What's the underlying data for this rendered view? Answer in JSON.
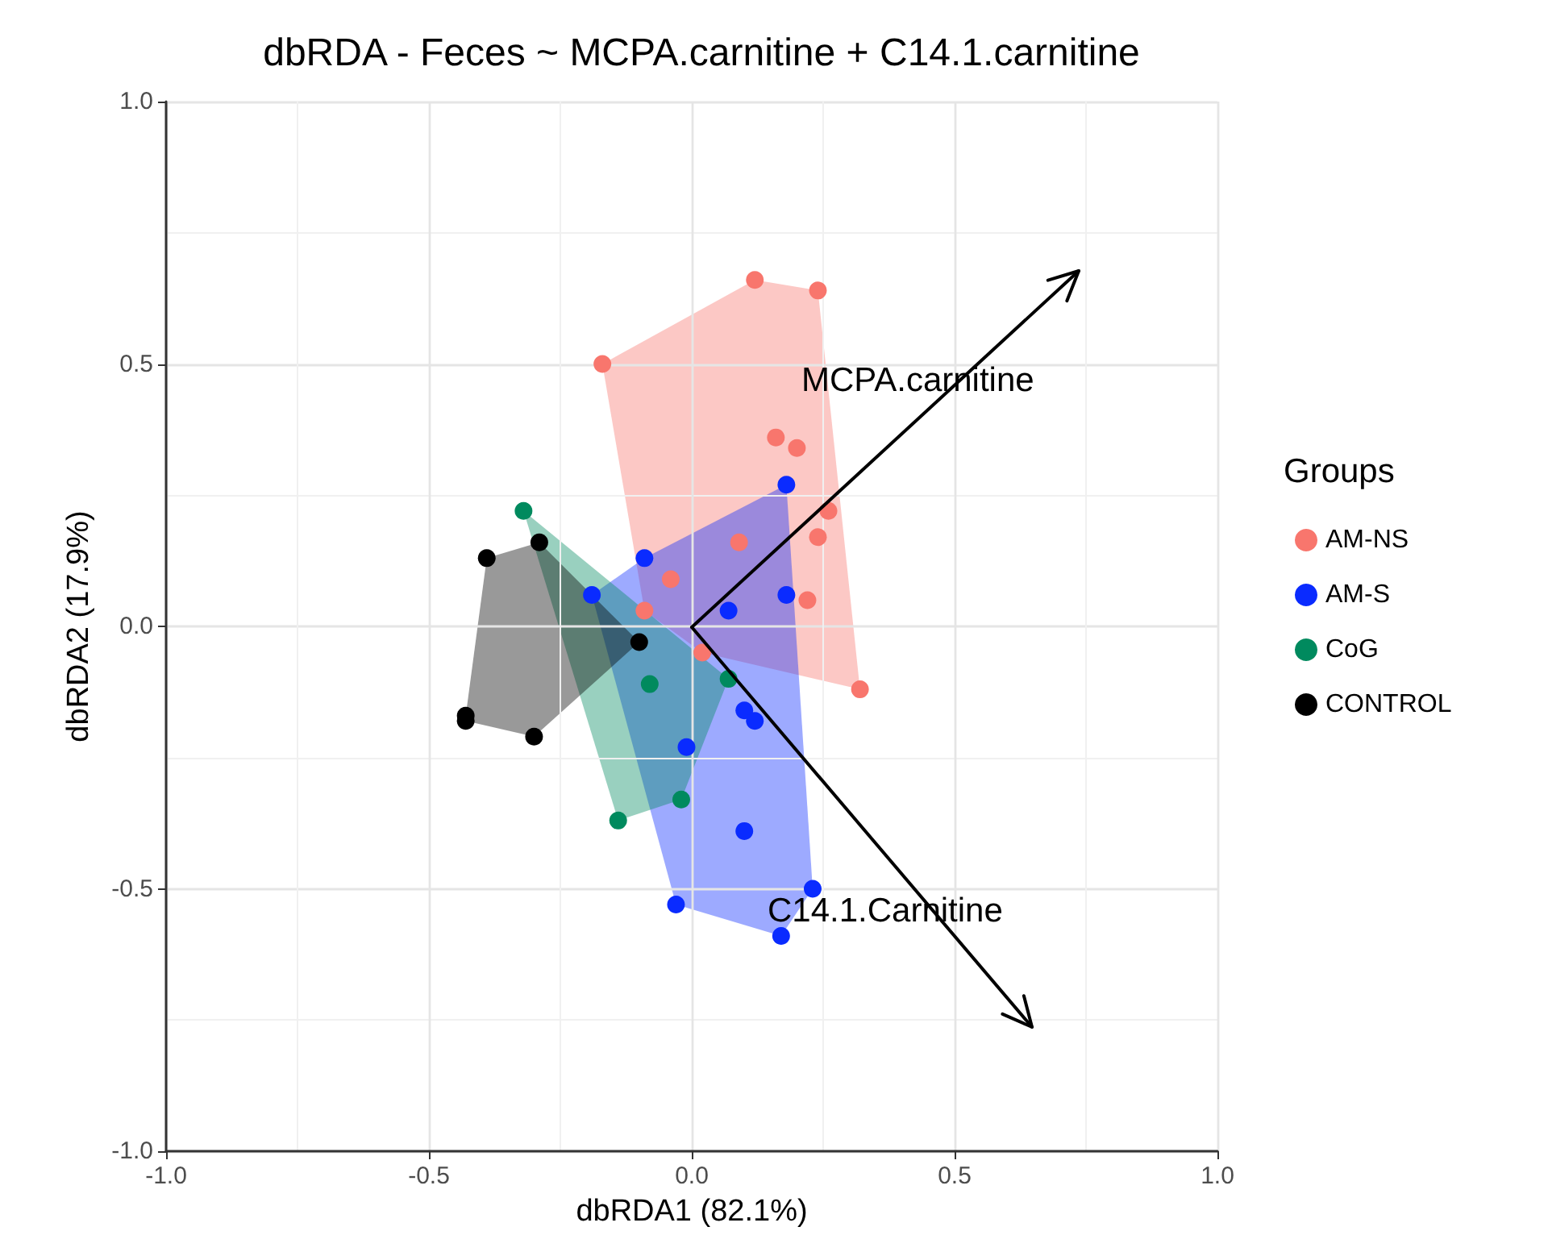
{
  "chart_data": {
    "type": "scatter",
    "title": "dbRDA - Feces ~ MCPA.carnitine + C14.1.carnitine",
    "xlabel": "dbRDA1 (82.1%)",
    "ylabel": "dbRDA2 (17.9%)",
    "legend_title": "Groups",
    "legend": "right",
    "grid": true,
    "marker": "circle",
    "xlim": [
      -1,
      1
    ],
    "ylim": [
      -1,
      1
    ],
    "xticks": [
      {
        "value": -1,
        "label": "-1.0"
      },
      {
        "value": -0.5,
        "label": "-0.5"
      },
      {
        "value": 0,
        "label": "0.0"
      },
      {
        "value": 0.5,
        "label": "0.5"
      },
      {
        "value": 1,
        "label": "1.0"
      }
    ],
    "yticks": [
      {
        "value": -1,
        "label": "-1.0"
      },
      {
        "value": -0.5,
        "label": "-0.5"
      },
      {
        "value": 0,
        "label": "0.0"
      },
      {
        "value": 0.5,
        "label": "0.5"
      },
      {
        "value": 1,
        "label": "1.0"
      }
    ],
    "series": [
      {
        "name": "AM-NS",
        "color": "#f8766d",
        "x": [
          0.12,
          0.24,
          -0.17,
          0.16,
          0.2,
          0.26,
          0.24,
          0.22,
          0.32,
          0.09,
          -0.04,
          -0.09,
          0.02
        ],
        "values": [
          0.66,
          0.64,
          0.5,
          0.36,
          0.34,
          0.22,
          0.17,
          0.05,
          -0.12,
          0.16,
          0.09,
          0.03,
          -0.05
        ]
      },
      {
        "name": "AM-S",
        "color": "#0a2bff",
        "x": [
          0.18,
          -0.09,
          -0.19,
          0.07,
          0.18,
          0.1,
          0.12,
          -0.01,
          0.1,
          0.23,
          -0.03,
          0.17
        ],
        "values": [
          0.27,
          0.13,
          0.06,
          0.03,
          0.06,
          -0.16,
          -0.18,
          -0.23,
          -0.39,
          -0.5,
          -0.53,
          -0.59
        ]
      },
      {
        "name": "CoG",
        "color": "#008a5e",
        "x": [
          -0.32,
          -0.08,
          -0.14,
          0.07,
          -0.02
        ],
        "values": [
          0.22,
          -0.11,
          -0.37,
          -0.1,
          -0.33
        ]
      },
      {
        "name": "CONTROL",
        "color": "#000000",
        "x": [
          -0.39,
          -0.29,
          -0.43,
          -0.43,
          -0.3,
          -0.1
        ],
        "values": [
          0.13,
          0.16,
          -0.17,
          -0.18,
          -0.21,
          -0.03
        ]
      }
    ],
    "annotations": [
      "MCPA.carnitine",
      "C14.1.Carnitine"
    ]
  }
}
